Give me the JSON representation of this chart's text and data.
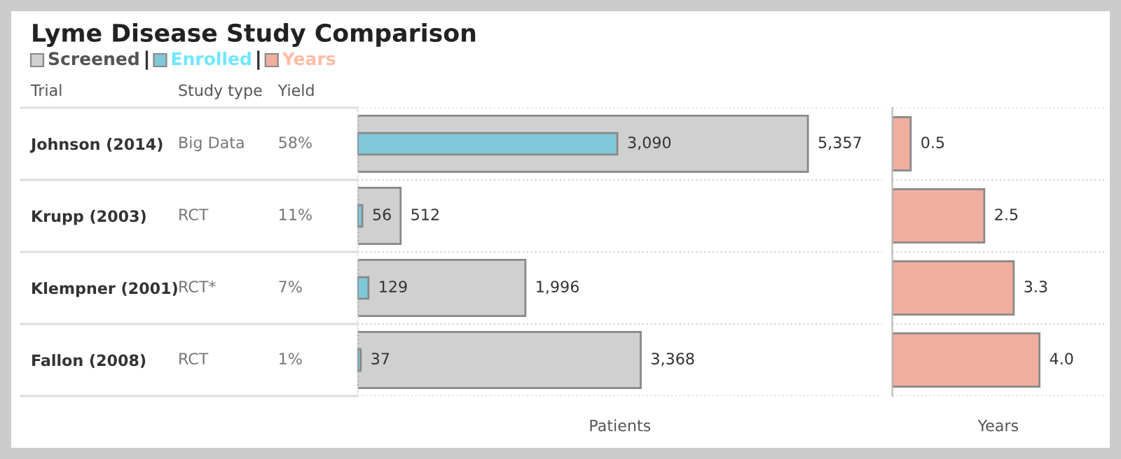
{
  "chart_data": [
    {
      "type": "bar",
      "orientation": "horizontal",
      "title": "Lyme Disease Study Comparison",
      "categories": [
        "Johnson (2014)",
        "Krupp (2003)",
        "Klempner (2001)",
        "Fallon (2008)"
      ],
      "ylabel": "Trial",
      "xlabel": "Patients",
      "tick_labels": "y",
      "legend": "top left",
      "series": [
        {
          "name": "Screened",
          "color": "#d0d0d0",
          "values": [
            5357,
            512,
            1996,
            3368
          ],
          "value_labels": [
            "5,357",
            "512",
            "1,996",
            "3,368"
          ]
        },
        {
          "name": "Enrolled",
          "color": "#7ec8d8",
          "values": [
            3090,
            56,
            129,
            37
          ],
          "value_labels": [
            "3,090",
            "56",
            "129",
            "37"
          ]
        }
      ]
    },
    {
      "type": "other",
      "categories": [
        "Study type",
        "Yield"
      ],
      "cell_labels": [
        [
          "Big Data",
          "58%"
        ],
        [
          "RCT",
          "11%"
        ],
        [
          "RCT*",
          "7%"
        ],
        [
          "RCT",
          "1%"
        ]
      ]
    },
    {
      "type": "bar",
      "orientation": "horizontal",
      "categories": [
        null,
        null,
        null,
        null
      ],
      "xlabel": "Years",
      "legend": "top left",
      "series": [
        {
          "name": "Years",
          "color": "#f0ae9f",
          "values": [
            0.5,
            2.5,
            3.3,
            4.0
          ],
          "value_labels": [
            "0.5",
            "2.5",
            "3.3",
            "4.0"
          ]
        }
      ]
    }
  ]
}
